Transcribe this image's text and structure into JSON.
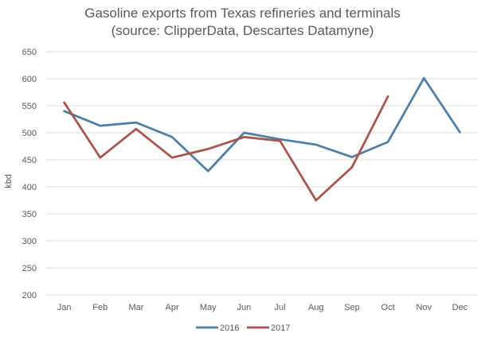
{
  "chart_data": {
    "type": "line",
    "title_line1": "Gasoline exports from Texas refineries and terminals",
    "title_line2": "(source: ClipperData, Descartes Datamyne)",
    "xlabel": "",
    "ylabel": "kbd",
    "categories": [
      "Jan",
      "Feb",
      "Mar",
      "Apr",
      "May",
      "Jun",
      "Jul",
      "Aug",
      "Sep",
      "Oct",
      "Nov",
      "Dec"
    ],
    "ylim": [
      200,
      650
    ],
    "yticks": [
      200,
      250,
      300,
      350,
      400,
      450,
      500,
      550,
      600,
      650
    ],
    "grid": true,
    "legend_position": "bottom",
    "series": [
      {
        "name": "2016",
        "color": "#4F7EA5",
        "values": [
          540,
          513,
          519,
          492,
          429,
          500,
          488,
          478,
          455,
          483,
          601,
          501
        ]
      },
      {
        "name": "2017",
        "color": "#A8534B",
        "values": [
          556,
          454,
          507,
          454,
          470,
          492,
          485,
          375,
          436,
          567,
          null,
          null
        ]
      }
    ]
  }
}
